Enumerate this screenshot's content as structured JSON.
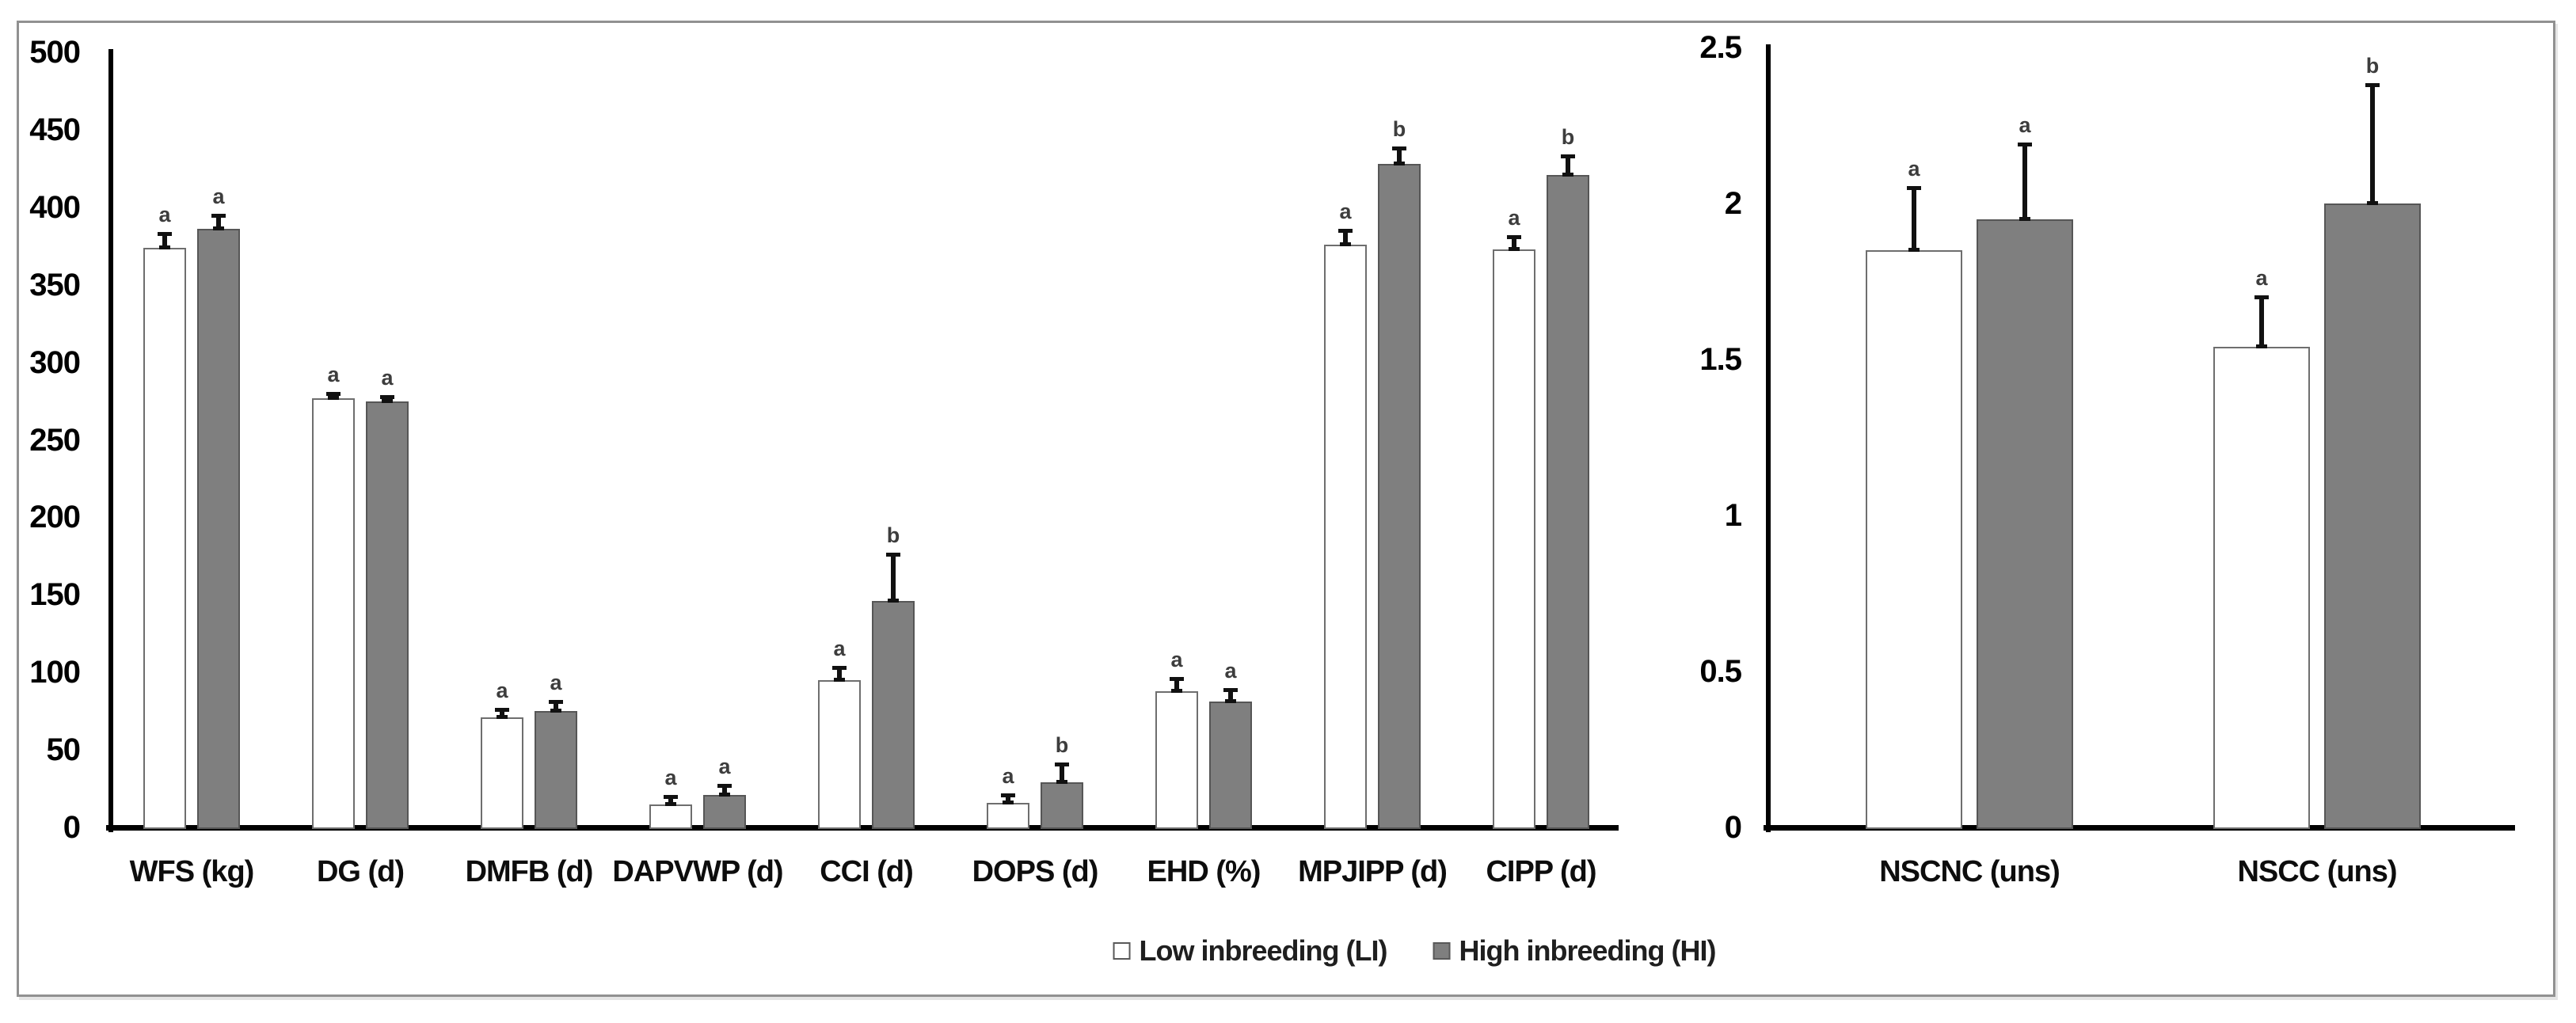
{
  "legend": {
    "items": [
      {
        "label": "Low inbreeding (LI)",
        "fill": "#ffffff"
      },
      {
        "label": "High inbreeding (HI)",
        "fill": "#7f7f7f"
      }
    ]
  },
  "colors": {
    "li_fill": "#ffffff",
    "hi_fill": "#7f7f7f",
    "li_border": "#6e6e6e",
    "hi_border": "#565656",
    "axis": "#000000",
    "error_bar": "#111111",
    "significance_letter": "#3d3d3d",
    "frame_border": "#919191"
  },
  "chart_data": [
    {
      "type": "bar",
      "panel": "left",
      "title": "",
      "xlabel": "",
      "ylabel": "",
      "ylim": [
        0,
        500
      ],
      "ytick_step": 50,
      "yticks": [
        "500",
        "450",
        "400",
        "350",
        "300",
        "250",
        "200",
        "150",
        "100",
        "50",
        "0"
      ],
      "grid": false,
      "legend_position": "bottom",
      "categories": [
        "WFS (kg)",
        "DG (d)",
        "DMFB (d)",
        "DAPVWP (d)",
        "CCI (d)",
        "DOPS (d)",
        "EHD (%)",
        "MPJIPP (d)",
        "CIPP (d)"
      ],
      "series": [
        {
          "name": "Low inbreeding (LI)",
          "values": [
            374,
            277,
            71,
            15,
            95,
            16,
            88,
            376,
            373
          ],
          "errors_plus": [
            9,
            3,
            5,
            5,
            8,
            5,
            8,
            9,
            8
          ],
          "sig_letters": [
            "a",
            "a",
            "a",
            "a",
            "a",
            "a",
            "a",
            "a",
            "a"
          ]
        },
        {
          "name": "High inbreeding (HI)",
          "values": [
            386,
            275,
            75,
            21,
            146,
            29,
            81,
            428,
            421
          ],
          "errors_plus": [
            9,
            3,
            6,
            6,
            30,
            12,
            8,
            10,
            12
          ],
          "sig_letters": [
            "a",
            "a",
            "a",
            "a",
            "b",
            "b",
            "a",
            "b",
            "b"
          ]
        }
      ]
    },
    {
      "type": "bar",
      "panel": "right",
      "title": "",
      "xlabel": "",
      "ylabel": "",
      "ylim": [
        0,
        2.5
      ],
      "ytick_step": 0.5,
      "yticks": [
        "2.5",
        "2",
        "1.5",
        "1",
        "0.5",
        "0"
      ],
      "grid": false,
      "legend_position": "bottom",
      "categories": [
        "NSCNC (uns)",
        "NSCC (uns)"
      ],
      "series": [
        {
          "name": "Low inbreeding (LI)",
          "values": [
            1.85,
            1.54
          ],
          "errors_plus": [
            0.2,
            0.16
          ],
          "sig_letters": [
            "a",
            "a"
          ]
        },
        {
          "name": "High inbreeding (HI)",
          "values": [
            1.95,
            2.0
          ],
          "errors_plus": [
            0.24,
            0.38
          ],
          "sig_letters": [
            "a",
            "b"
          ]
        }
      ]
    }
  ]
}
